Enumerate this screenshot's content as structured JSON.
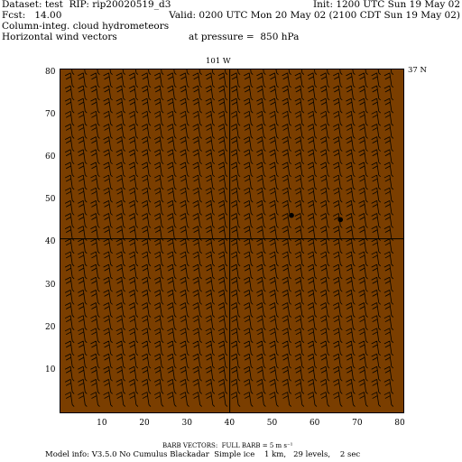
{
  "header": {
    "dataset": "Dataset: test  RIP: rip20020519_d3",
    "init": "Init: 1200 UTC Sun 19 May 02",
    "fcst": "Fcst:   14.00",
    "valid": "Valid: 0200 UTC Mon 20 May 02 (2100 CDT Sun 19 May 02)",
    "field1": "Column-integ. cloud hydrometeors",
    "field2": "Horizontal wind vectors",
    "pressure": "at pressure =  850 hPa"
  },
  "map": {
    "longitude_label": "101 W",
    "latitude_label": "37 N",
    "background_color": "#7a3e00",
    "line_color": "#000000",
    "x_ticks": [
      "10",
      "20",
      "30",
      "40",
      "50",
      "60",
      "70",
      "80"
    ],
    "y_ticks": [
      "10",
      "20",
      "30",
      "40",
      "50",
      "60",
      "70",
      "80"
    ],
    "x_range": [
      0,
      81
    ],
    "y_range": [
      0,
      81
    ],
    "reference_lines": {
      "x": 40,
      "y": 41
    },
    "points": [
      {
        "x": 54.5,
        "y": 46.5
      },
      {
        "x": 66,
        "y": 45.5
      }
    ],
    "barb_grid": {
      "x_start": 3,
      "x_step": 3,
      "y_start": 2,
      "y_step": 3
    }
  },
  "footer": {
    "barb_legend": "BARB VECTORS:  FULL BARB = 5 m s⁻¹",
    "model_info": "Model info: V3.5.0 No Cumulus Blackadar  Simple ice    1 km,   29 levels,    2 sec"
  }
}
